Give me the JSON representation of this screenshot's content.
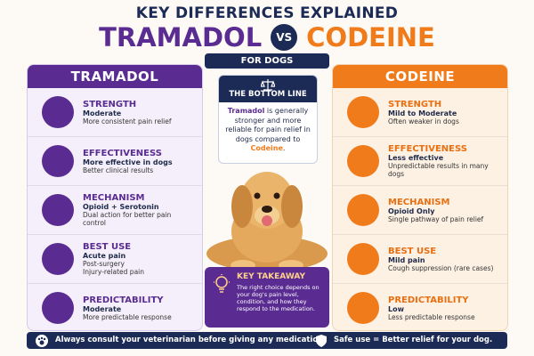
{
  "header": {
    "kicker": "KEY DIFFERENCES EXPLAINED",
    "left": "TRAMADOL",
    "vs": "VS",
    "right": "CODEINE",
    "subtitle": "FOR DOGS"
  },
  "left_panel": {
    "title": "TRAMADOL",
    "items": [
      {
        "heading": "STRENGTH",
        "lines": [
          "Moderate",
          "More consistent pain relief"
        ]
      },
      {
        "heading": "EFFECTIVENESS",
        "lines": [
          "More effective in dogs",
          "Better clinical results"
        ]
      },
      {
        "heading": "MECHANISM",
        "lines": [
          "Opioid + Serotonin",
          "Dual action for better pain control"
        ]
      },
      {
        "heading": "BEST USE",
        "lines": [
          "Acute pain",
          "Post-surgery",
          "Injury-related pain"
        ]
      },
      {
        "heading": "PREDICTABILITY",
        "lines": [
          "Moderate",
          "More predictable response"
        ]
      }
    ]
  },
  "right_panel": {
    "title": "CODEINE",
    "items": [
      {
        "heading": "STRENGTH",
        "lines": [
          "Mild to Moderate",
          "Often weaker in dogs"
        ]
      },
      {
        "heading": "EFFECTIVENESS",
        "lines": [
          "Less effective",
          "Unpredictable results in many dogs"
        ]
      },
      {
        "heading": "MECHANISM",
        "lines": [
          "Opioid Only",
          "Single pathway of pain relief"
        ]
      },
      {
        "heading": "BEST USE",
        "lines": [
          "Mild pain",
          "Cough suppression (rare cases)"
        ]
      },
      {
        "heading": "PREDICTABILITY",
        "lines": [
          "Low",
          "Less predictable response"
        ]
      }
    ]
  },
  "bottom_line": {
    "title": "THE BOTTOM LINE",
    "text": [
      "Tramadol",
      " is generally stronger and more reliable for pain relief in dogs compared to ",
      "Codeine",
      "."
    ]
  },
  "takeaway": {
    "title": "KEY TAKEAWAY",
    "text": "The right choice depends on your dog's pain level, condition, and how they respond to the medication."
  },
  "footer": {
    "left": "Always consult your veterinarian before giving any medication.",
    "right": "Safe use = Better relief for your dog."
  }
}
